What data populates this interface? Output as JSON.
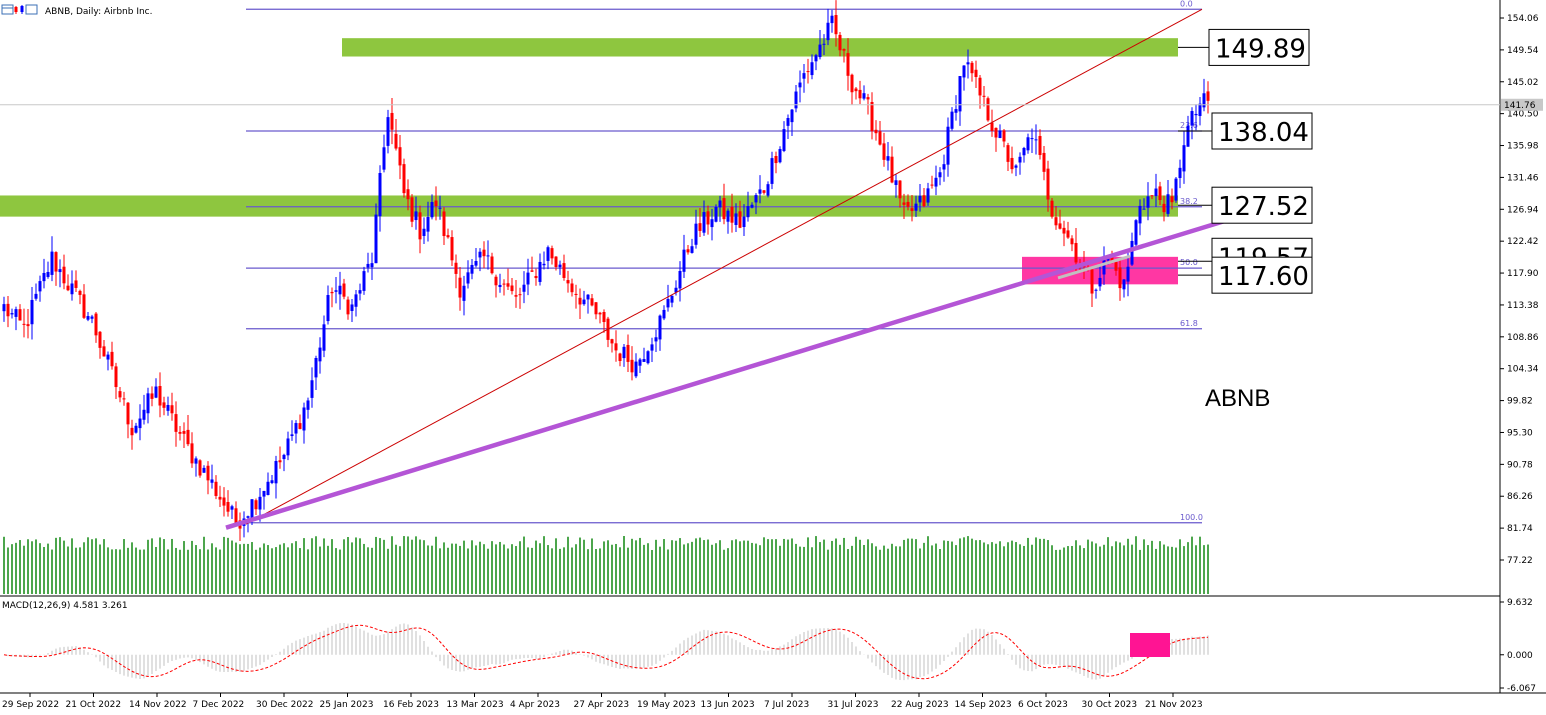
{
  "header": {
    "title": "ABNB, Daily: Airbnb Inc."
  },
  "symbol_label": "ABNB",
  "colors": {
    "bull": "#0000ff",
    "bear": "#ff0000",
    "volume": "#008000",
    "fib": "#6a5acd",
    "zone": "#8ec63f",
    "pink": "#ff1493",
    "trend_thin": "#cc0000",
    "trend_thick": "#b455d6",
    "macd_hist": "#c0c0c0",
    "macd_signal": "#ff0000"
  },
  "chart_data": {
    "type": "candlestick",
    "price_axis": {
      "range": [
        77.22,
        155.5
      ],
      "ticks": [
        "154.06",
        "149.54",
        "145.02",
        "140.50",
        "135.98",
        "131.46",
        "126.94",
        "122.42",
        "117.90",
        "113.38",
        "108.86",
        "104.34",
        "99.82",
        "95.30",
        "90.78",
        "86.26",
        "81.74",
        "77.22"
      ],
      "current_price": "141.76"
    },
    "time_axis": {
      "ticks": [
        "29 Sep 2022",
        "21 Oct 2022",
        "14 Nov 2022",
        "7 Dec 2022",
        "30 Dec 2022",
        "25 Jan 2023",
        "16 Feb 2023",
        "13 Mar 2023",
        "4 Apr 2023",
        "27 Apr 2023",
        "19 May 2023",
        "13 Jun 2023",
        "7 Jul 2023",
        "31 Jul 2023",
        "22 Aug 2023",
        "14 Sep 2023",
        "6 Oct 2023",
        "30 Oct 2023",
        "21 Nov 2023"
      ]
    },
    "fibonacci": {
      "levels": [
        {
          "label": "0.0",
          "price": 155.3
        },
        {
          "label": "23.6",
          "price": 138.04
        },
        {
          "label": "38.2",
          "price": 127.3
        },
        {
          "label": "50.0",
          "price": 118.6
        },
        {
          "label": "61.8",
          "price": 110.0
        },
        {
          "label": "100.0",
          "price": 82.5
        }
      ]
    },
    "price_levels": [
      "149.89",
      "138.04",
      "127.52",
      "119.57",
      "117.60"
    ],
    "zones": [
      {
        "from": 148.6,
        "to": 151.2,
        "color": "green"
      },
      {
        "from": 125.9,
        "to": 128.9,
        "color": "green"
      },
      {
        "from": 116.3,
        "to": 120.2,
        "color": "pink"
      }
    ],
    "macd": {
      "label": "MACD(12,26,9) 4.581 3.261",
      "ticks": [
        "9.632",
        "0.000",
        "-6.067"
      ]
    },
    "anchors": [
      {
        "i": 0,
        "p": 113
      },
      {
        "i": 5,
        "p": 110
      },
      {
        "i": 12,
        "p": 120
      },
      {
        "i": 22,
        "p": 111
      },
      {
        "i": 32,
        "p": 96
      },
      {
        "i": 38,
        "p": 101
      },
      {
        "i": 46,
        "p": 93
      },
      {
        "i": 52,
        "p": 88
      },
      {
        "i": 58,
        "p": 82.5
      },
      {
        "i": 63,
        "p": 86
      },
      {
        "i": 70,
        "p": 92
      },
      {
        "i": 76,
        "p": 100
      },
      {
        "i": 82,
        "p": 116
      },
      {
        "i": 87,
        "p": 113
      },
      {
        "i": 92,
        "p": 120
      },
      {
        "i": 96,
        "p": 141
      },
      {
        "i": 100,
        "p": 129
      },
      {
        "i": 104,
        "p": 124
      },
      {
        "i": 108,
        "p": 128
      },
      {
        "i": 114,
        "p": 116
      },
      {
        "i": 120,
        "p": 120
      },
      {
        "i": 128,
        "p": 114
      },
      {
        "i": 136,
        "p": 121
      },
      {
        "i": 142,
        "p": 116
      },
      {
        "i": 148,
        "p": 112
      },
      {
        "i": 153,
        "p": 107
      },
      {
        "i": 158,
        "p": 105
      },
      {
        "i": 165,
        "p": 112
      },
      {
        "i": 172,
        "p": 123
      },
      {
        "i": 178,
        "p": 127
      },
      {
        "i": 184,
        "p": 125
      },
      {
        "i": 190,
        "p": 130
      },
      {
        "i": 196,
        "p": 140
      },
      {
        "i": 200,
        "p": 146
      },
      {
        "i": 205,
        "p": 151
      },
      {
        "i": 207,
        "p": 153
      },
      {
        "i": 212,
        "p": 145
      },
      {
        "i": 216,
        "p": 141
      },
      {
        "i": 220,
        "p": 135
      },
      {
        "i": 225,
        "p": 126
      },
      {
        "i": 230,
        "p": 128
      },
      {
        "i": 234,
        "p": 132
      },
      {
        "i": 240,
        "p": 148
      },
      {
        "i": 244,
        "p": 143
      },
      {
        "i": 248,
        "p": 138
      },
      {
        "i": 253,
        "p": 132
      },
      {
        "i": 257,
        "p": 138
      },
      {
        "i": 262,
        "p": 127
      },
      {
        "i": 267,
        "p": 122
      },
      {
        "i": 272,
        "p": 116
      },
      {
        "i": 276,
        "p": 120
      },
      {
        "i": 280,
        "p": 116
      },
      {
        "i": 284,
        "p": 128
      },
      {
        "i": 288,
        "p": 129
      },
      {
        "i": 292,
        "p": 127
      },
      {
        "i": 295,
        "p": 137
      },
      {
        "i": 299,
        "p": 142
      },
      {
        "i": 301,
        "p": 141.76
      }
    ]
  }
}
